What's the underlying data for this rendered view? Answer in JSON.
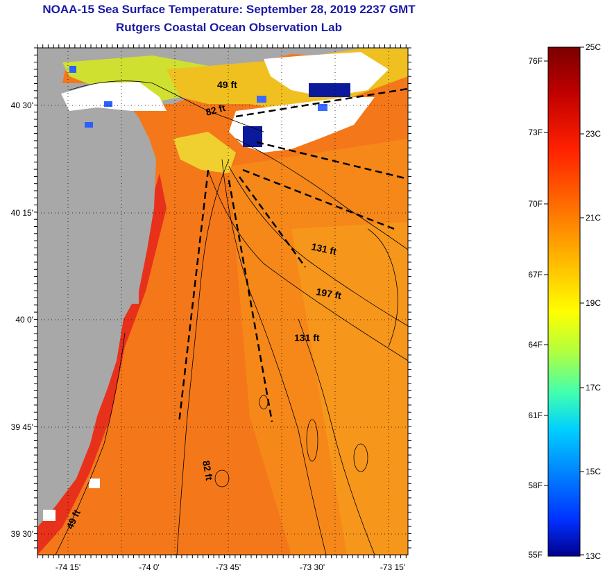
{
  "header": {
    "title": "NOAA-15 Sea Surface Temperature:  September 28, 2019 2237 GMT",
    "subtitle": "Rutgers Coastal Ocean Observation Lab"
  },
  "map": {
    "lat_labels": [
      "40 30'",
      "40 15'",
      "40 0'",
      "39 45'",
      "39 30'"
    ],
    "lon_labels": [
      "-74 15'",
      "-74 0'",
      "-73 45'",
      "-73 30'",
      "-73 15'"
    ],
    "depth_labels": [
      "49 ft",
      "82 ft",
      "131 ft",
      "197 ft",
      "131 ft",
      "82 ft",
      "49 ft"
    ],
    "colors": {
      "land": "#a8a8a8",
      "ocean_warm": "#f4791a",
      "ocean_cool": "#f79a1a",
      "nearshore": "#e8301a",
      "cloud": "#ffffff"
    }
  },
  "colorbar": {
    "fahrenheit_labels": [
      "76F",
      "73F",
      "70F",
      "67F",
      "64F",
      "61F",
      "58F",
      "55F"
    ],
    "celsius_labels": [
      "25C",
      "23C",
      "21C",
      "19C",
      "17C",
      "15C",
      "13C"
    ],
    "gradient": [
      "#7a0000",
      "#c00000",
      "#ff2000",
      "#ff7a00",
      "#ffc000",
      "#ffff00",
      "#b0ff40",
      "#40ffb0",
      "#00d0ff",
      "#0080ff",
      "#0030ff",
      "#00008c"
    ]
  }
}
